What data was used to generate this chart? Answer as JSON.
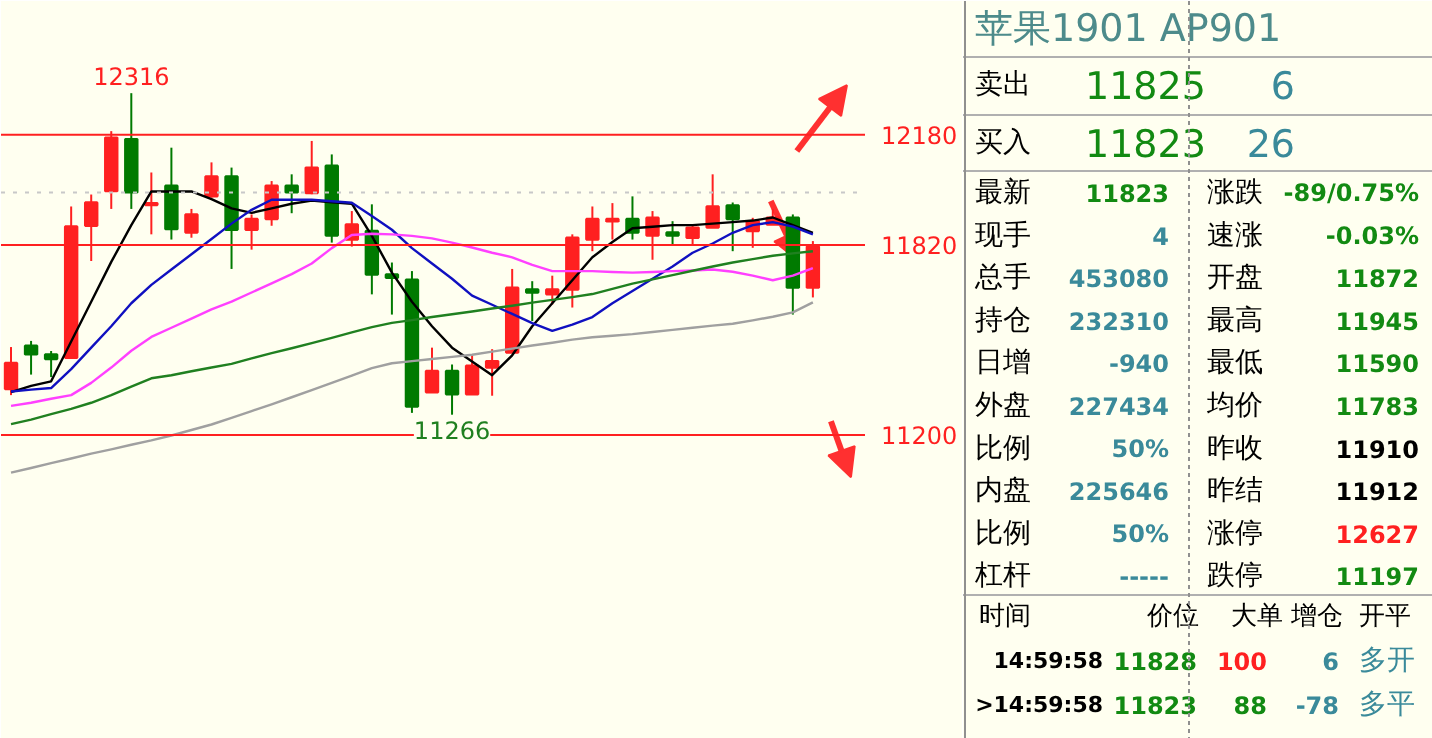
{
  "chart_data": [
    {
      "type": "candlestick",
      "categories": [
        null,
        null,
        null,
        null,
        null,
        null,
        null,
        null,
        null,
        null,
        null,
        null,
        null,
        null,
        null,
        null,
        null,
        null,
        null,
        null,
        null,
        null,
        null,
        null,
        null,
        null,
        null,
        null,
        null,
        null,
        null,
        null,
        null,
        null,
        null,
        null,
        null,
        null,
        null,
        null,
        null
      ],
      "ohlc": [
        [
          11350,
          11487,
          11330,
          11435
        ],
        [
          11491,
          11507,
          11397,
          11463
        ],
        [
          11463,
          11474,
          11389,
          11448
        ],
        [
          11452,
          11946,
          11452,
          11881
        ],
        [
          11883,
          11985,
          11768,
          11959
        ],
        [
          11996,
          12192,
          11938,
          12171
        ],
        [
          12166,
          12316,
          11938,
          11992
        ],
        [
          11951,
          12057,
          11855,
          11957
        ],
        [
          12014,
          12138,
          11838,
          11872
        ],
        [
          11861,
          11938,
          11844,
          11920
        ],
        [
          11979,
          12090,
          11975,
          12044
        ],
        [
          12044,
          12073,
          11742,
          11870
        ],
        [
          11870,
          11920,
          11805,
          11905
        ],
        [
          11905,
          12029,
          11883,
          12014
        ],
        [
          12014,
          12051,
          11924,
          11992
        ],
        [
          11990,
          12160,
          11986,
          12073
        ],
        [
          12079,
          12116,
          11828,
          11851
        ],
        [
          11838,
          11931,
          11815,
          11887
        ],
        [
          11866,
          11953,
          11659,
          11724
        ],
        [
          11724,
          11763,
          11593,
          11713
        ],
        [
          11707,
          11735,
          11272,
          11293
        ],
        [
          11339,
          11485,
          11339,
          11409
        ],
        [
          11409,
          11430,
          11266,
          11333
        ],
        [
          11333,
          11463,
          11333,
          11426
        ],
        [
          11420,
          11480,
          11328,
          11441
        ],
        [
          11469,
          11742,
          11469,
          11681
        ],
        [
          11675,
          11702,
          11572,
          11665
        ],
        [
          11659,
          11720,
          11626,
          11675
        ],
        [
          11675,
          11855,
          11616,
          11844
        ],
        [
          11838,
          11946,
          11800,
          11905
        ],
        [
          11898,
          11957,
          11838,
          11905
        ],
        [
          11905,
          11979,
          11838,
          11861
        ],
        [
          11851,
          11931,
          11772,
          11909
        ],
        [
          11861,
          11898,
          11822,
          11851
        ],
        [
          11844,
          11887,
          11822,
          11877
        ],
        [
          11877,
          12051,
          11877,
          11946
        ],
        [
          11949,
          11959,
          11800,
          11905
        ],
        [
          11866,
          11909,
          11811,
          11898
        ],
        [
          11887,
          11938,
          11887,
          11909
        ],
        [
          11909,
          11920,
          11593,
          11681
        ],
        [
          11681,
          11833,
          11649,
          11815
        ]
      ],
      "colors": [
        "#ff2020",
        "#007a00",
        "#007a00",
        "#ff2020",
        "#ff2020",
        "#ff2020",
        "#007a00",
        "#ff2020",
        "#007a00",
        "#ff2020",
        "#ff2020",
        "#007a00",
        "#ff2020",
        "#ff2020",
        "#007a00",
        "#ff2020",
        "#007a00",
        "#ff2020",
        "#007a00",
        "#007a00",
        "#007a00",
        "#ff2020",
        "#007a00",
        "#ff2020",
        "#ff2020",
        "#ff2020",
        "#007a00",
        "#ff2020",
        "#ff2020",
        "#ff2020",
        "#ff2020",
        "#007a00",
        "#ff2020",
        "#007a00",
        "#ff2020",
        "#ff2020",
        "#007a00",
        "#ff2020",
        "#ff2020",
        "#007a00",
        "#ff2020"
      ],
      "series": [
        {
          "type": "line",
          "color": "#000000",
          "values": [
            11340,
            11360,
            11375,
            11505,
            11635,
            11765,
            11885,
            11995,
            11995,
            11995,
            11970,
            11940,
            11925,
            11940,
            11955,
            11965,
            11960,
            11955,
            11850,
            11730,
            11635,
            11555,
            11485,
            11440,
            11395,
            11460,
            11555,
            11630,
            11705,
            11780,
            11830,
            11875,
            11880,
            11885,
            11885,
            11890,
            11895,
            11900,
            11910,
            11885,
            11860
          ]
        },
        {
          "type": "line",
          "color": "#1010c0",
          "values": [
            11342,
            11348,
            11353,
            11415,
            11485,
            11555,
            11630,
            11690,
            11740,
            11790,
            11840,
            11890,
            11935,
            11968,
            11968,
            11968,
            11963,
            11958,
            11915,
            11870,
            11810,
            11760,
            11710,
            11655,
            11625,
            11595,
            11565,
            11540,
            11560,
            11585,
            11630,
            11670,
            11710,
            11750,
            11795,
            11825,
            11860,
            11885,
            11895,
            11880,
            11855
          ]
        },
        {
          "type": "line",
          "color": "#ff40ff",
          "values": [
            11295,
            11305,
            11318,
            11330,
            11370,
            11420,
            11475,
            11520,
            11550,
            11580,
            11610,
            11635,
            11665,
            11695,
            11725,
            11760,
            11810,
            11853,
            11857,
            11855,
            11850,
            11842,
            11828,
            11812,
            11795,
            11780,
            11755,
            11735,
            11735,
            11735,
            11732,
            11730,
            11732,
            11735,
            11737,
            11740,
            11733,
            11720,
            11705,
            11720,
            11745
          ]
        },
        {
          "type": "line",
          "color": "#208020",
          "values": [
            11235,
            11250,
            11268,
            11285,
            11305,
            11330,
            11358,
            11385,
            11395,
            11408,
            11420,
            11432,
            11450,
            11467,
            11483,
            11500,
            11517,
            11535,
            11552,
            11566,
            11575,
            11585,
            11594,
            11603,
            11613,
            11622,
            11632,
            11641,
            11650,
            11660,
            11677,
            11694,
            11708,
            11722,
            11736,
            11750,
            11763,
            11774,
            11785,
            11793,
            11800
          ]
        },
        {
          "type": "line",
          "color": "#a0a0a0",
          "values": [
            11077,
            11092,
            11108,
            11123,
            11139,
            11153,
            11168,
            11182,
            11198,
            11216,
            11234,
            11256,
            11278,
            11300,
            11323,
            11346,
            11370,
            11394,
            11418,
            11434,
            11441,
            11448,
            11455,
            11462,
            11472,
            11482,
            11492,
            11501,
            11511,
            11519,
            11524,
            11529,
            11536,
            11543,
            11550,
            11557,
            11563,
            11574,
            11586,
            11600,
            11633
          ]
        }
      ],
      "ylim": [
        10207,
        12617
      ],
      "yticks": [
        12180,
        11820,
        11200
      ],
      "tick_labels": "y",
      "grid": false,
      "ref_lines": [
        {
          "axis": "y",
          "value": 12180,
          "color": "#ff2020"
        },
        {
          "axis": "y",
          "value": 11820,
          "color": "#ff2020"
        },
        {
          "axis": "y",
          "value": 11200,
          "color": "#ff2020"
        },
        {
          "axis": "y",
          "value": 11992,
          "color": "#c8c8c8",
          "line_style": "dotted"
        }
      ],
      "annotations": [
        {
          "text": "12316",
          "y": 12316
        },
        {
          "text": "11266",
          "y": 11266
        }
      ]
    },
    {
      "type": "other",
      "title": "苹果1901 AP901",
      "annotations": [
        "卖出",
        "11825",
        "6",
        "买入",
        "11823",
        "26",
        "最新",
        "11823",
        "涨跌",
        "-89/0.75%",
        "现手",
        "4",
        "速涨",
        "-0.03%",
        "总手",
        "453080",
        "开盘",
        "11872",
        "持仓",
        "232310",
        "最高",
        "11945",
        "日增",
        "-940",
        "最低",
        "11590",
        "外盘",
        "227434",
        "均价",
        "11783",
        "比例",
        "50%",
        "昨收",
        "11910",
        "内盘",
        "225646",
        "昨结",
        "11912",
        "比例",
        "50%",
        "涨停",
        "12627",
        "杠杆",
        "-----",
        "跌停",
        "11197",
        "时间",
        "价位",
        "大单",
        "增仓",
        "开平",
        "14:59:58",
        "11828",
        "100",
        "6",
        "多开",
        ">14:59:58",
        "11823",
        "88",
        "-78",
        "多平"
      ]
    }
  ]
}
